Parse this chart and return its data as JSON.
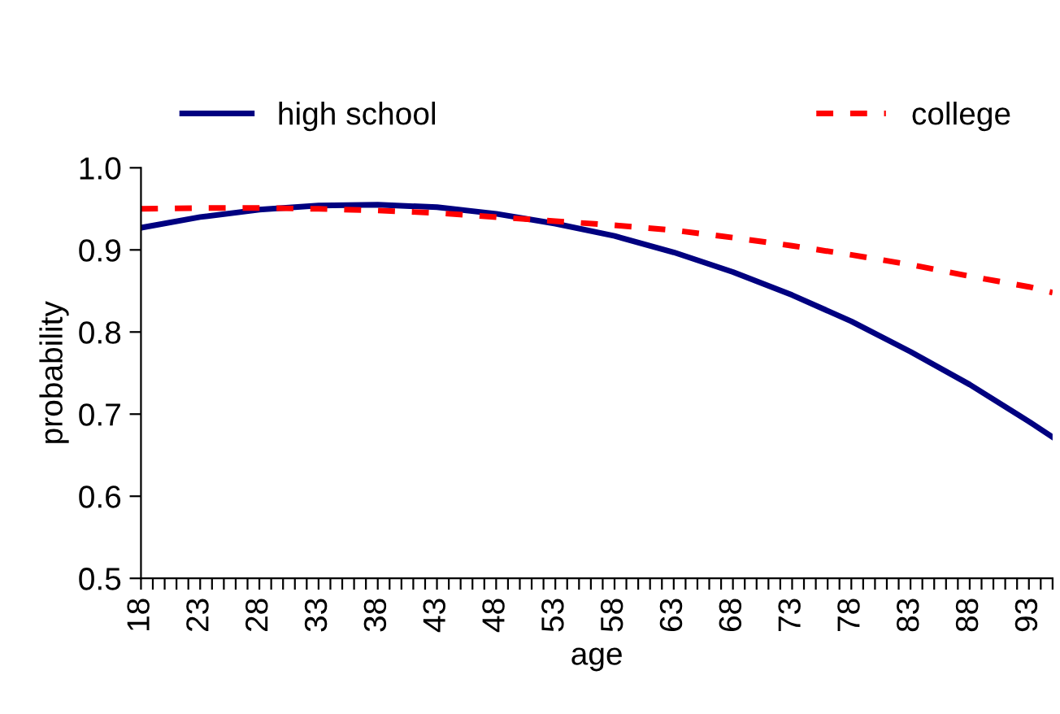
{
  "chart_data": {
    "type": "line",
    "xlabel": "age",
    "ylabel": "probability",
    "x": [
      18,
      23,
      28,
      33,
      38,
      43,
      48,
      53,
      58,
      63,
      68,
      73,
      78,
      83,
      88,
      93,
      95
    ],
    "series": [
      {
        "name": "high school",
        "color": "#000080",
        "line_style": "solid",
        "values": [
          0.927,
          0.94,
          0.949,
          0.954,
          0.955,
          0.952,
          0.944,
          0.932,
          0.917,
          0.897,
          0.873,
          0.845,
          0.813,
          0.776,
          0.736,
          0.691,
          0.672
        ]
      },
      {
        "name": "college",
        "color": "#ff0000",
        "line_style": "dashed",
        "values": [
          0.95,
          0.951,
          0.951,
          0.95,
          0.948,
          0.945,
          0.94,
          0.935,
          0.93,
          0.924,
          0.915,
          0.905,
          0.894,
          0.882,
          0.868,
          0.855,
          0.848
        ]
      }
    ],
    "xlim": [
      18,
      95
    ],
    "xticks": [
      {
        "value": 18,
        "label": "18"
      },
      {
        "value": 19,
        "label": null
      },
      {
        "value": 20,
        "label": null
      },
      {
        "value": 21,
        "label": null
      },
      {
        "value": 22,
        "label": null
      },
      {
        "value": 23,
        "label": "23"
      },
      {
        "value": 24,
        "label": null
      },
      {
        "value": 25,
        "label": null
      },
      {
        "value": 26,
        "label": null
      },
      {
        "value": 27,
        "label": null
      },
      {
        "value": 28,
        "label": "28"
      },
      {
        "value": 29,
        "label": null
      },
      {
        "value": 30,
        "label": null
      },
      {
        "value": 31,
        "label": null
      },
      {
        "value": 32,
        "label": null
      },
      {
        "value": 33,
        "label": "33"
      },
      {
        "value": 34,
        "label": null
      },
      {
        "value": 35,
        "label": null
      },
      {
        "value": 36,
        "label": null
      },
      {
        "value": 37,
        "label": null
      },
      {
        "value": 38,
        "label": "38"
      },
      {
        "value": 39,
        "label": null
      },
      {
        "value": 40,
        "label": null
      },
      {
        "value": 41,
        "label": null
      },
      {
        "value": 42,
        "label": null
      },
      {
        "value": 43,
        "label": "43"
      },
      {
        "value": 44,
        "label": null
      },
      {
        "value": 45,
        "label": null
      },
      {
        "value": 46,
        "label": null
      },
      {
        "value": 47,
        "label": null
      },
      {
        "value": 48,
        "label": "48"
      },
      {
        "value": 49,
        "label": null
      },
      {
        "value": 50,
        "label": null
      },
      {
        "value": 51,
        "label": null
      },
      {
        "value": 52,
        "label": null
      },
      {
        "value": 53,
        "label": "53"
      },
      {
        "value": 54,
        "label": null
      },
      {
        "value": 55,
        "label": null
      },
      {
        "value": 56,
        "label": null
      },
      {
        "value": 57,
        "label": null
      },
      {
        "value": 58,
        "label": "58"
      },
      {
        "value": 59,
        "label": null
      },
      {
        "value": 60,
        "label": null
      },
      {
        "value": 61,
        "label": null
      },
      {
        "value": 62,
        "label": null
      },
      {
        "value": 63,
        "label": "63"
      },
      {
        "value": 64,
        "label": null
      },
      {
        "value": 65,
        "label": null
      },
      {
        "value": 66,
        "label": null
      },
      {
        "value": 67,
        "label": null
      },
      {
        "value": 68,
        "label": "68"
      },
      {
        "value": 69,
        "label": null
      },
      {
        "value": 70,
        "label": null
      },
      {
        "value": 71,
        "label": null
      },
      {
        "value": 72,
        "label": null
      },
      {
        "value": 73,
        "label": "73"
      },
      {
        "value": 74,
        "label": null
      },
      {
        "value": 75,
        "label": null
      },
      {
        "value": 76,
        "label": null
      },
      {
        "value": 77,
        "label": null
      },
      {
        "value": 78,
        "label": "78"
      },
      {
        "value": 79,
        "label": null
      },
      {
        "value": 80,
        "label": null
      },
      {
        "value": 81,
        "label": null
      },
      {
        "value": 82,
        "label": null
      },
      {
        "value": 83,
        "label": "83"
      },
      {
        "value": 84,
        "label": null
      },
      {
        "value": 85,
        "label": null
      },
      {
        "value": 86,
        "label": null
      },
      {
        "value": 87,
        "label": null
      },
      {
        "value": 88,
        "label": "88"
      },
      {
        "value": 89,
        "label": null
      },
      {
        "value": 90,
        "label": null
      },
      {
        "value": 91,
        "label": null
      },
      {
        "value": 92,
        "label": null
      },
      {
        "value": 93,
        "label": "93"
      },
      {
        "value": 94,
        "label": null
      },
      {
        "value": 95,
        "label": null
      }
    ],
    "ylim": [
      0.5,
      1.0
    ],
    "yticks": [
      0.5,
      0.6,
      0.7,
      0.8,
      0.9,
      {
        "value": 1.0,
        "label": "1.0"
      }
    ],
    "legend": "top",
    "grid": false,
    "marker": "none"
  }
}
